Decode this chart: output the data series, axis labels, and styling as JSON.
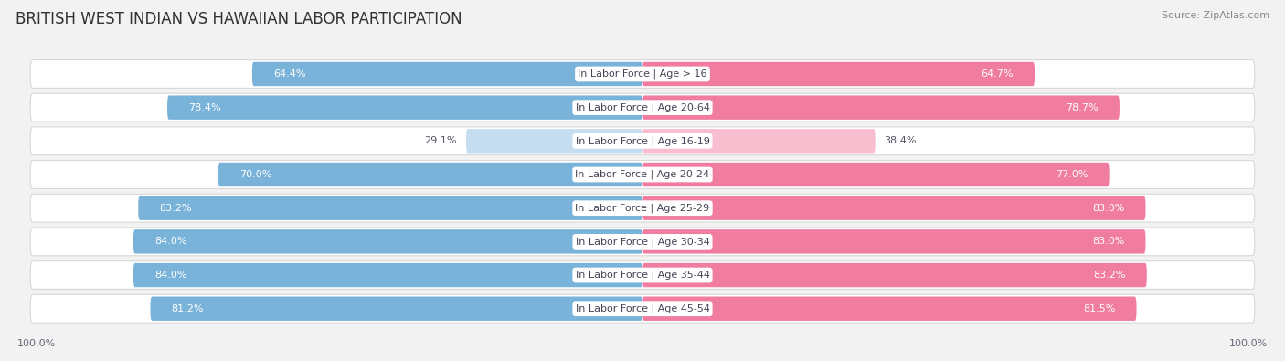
{
  "title": "BRITISH WEST INDIAN VS HAWAIIAN LABOR PARTICIPATION",
  "source": "Source: ZipAtlas.com",
  "categories": [
    "In Labor Force | Age > 16",
    "In Labor Force | Age 20-64",
    "In Labor Force | Age 16-19",
    "In Labor Force | Age 20-24",
    "In Labor Force | Age 25-29",
    "In Labor Force | Age 30-34",
    "In Labor Force | Age 35-44",
    "In Labor Force | Age 45-54"
  ],
  "british_values": [
    64.4,
    78.4,
    29.1,
    70.0,
    83.2,
    84.0,
    84.0,
    81.2
  ],
  "hawaiian_values": [
    64.7,
    78.7,
    38.4,
    77.0,
    83.0,
    83.0,
    83.2,
    81.5
  ],
  "british_color": "#7ab3d9",
  "hawaiian_color": "#f07ca0",
  "british_light_color": "#c5ddef",
  "hawaiian_light_color": "#f9bdd0",
  "row_bg_color": "#ffffff",
  "row_edge_color": "#d8d8d8",
  "bg_color": "#f2f2f2",
  "max_value": 100.0,
  "title_fontsize": 12,
  "label_fontsize": 8,
  "value_fontsize": 8,
  "axis_fontsize": 8,
  "legend_fontsize": 9,
  "source_fontsize": 8
}
